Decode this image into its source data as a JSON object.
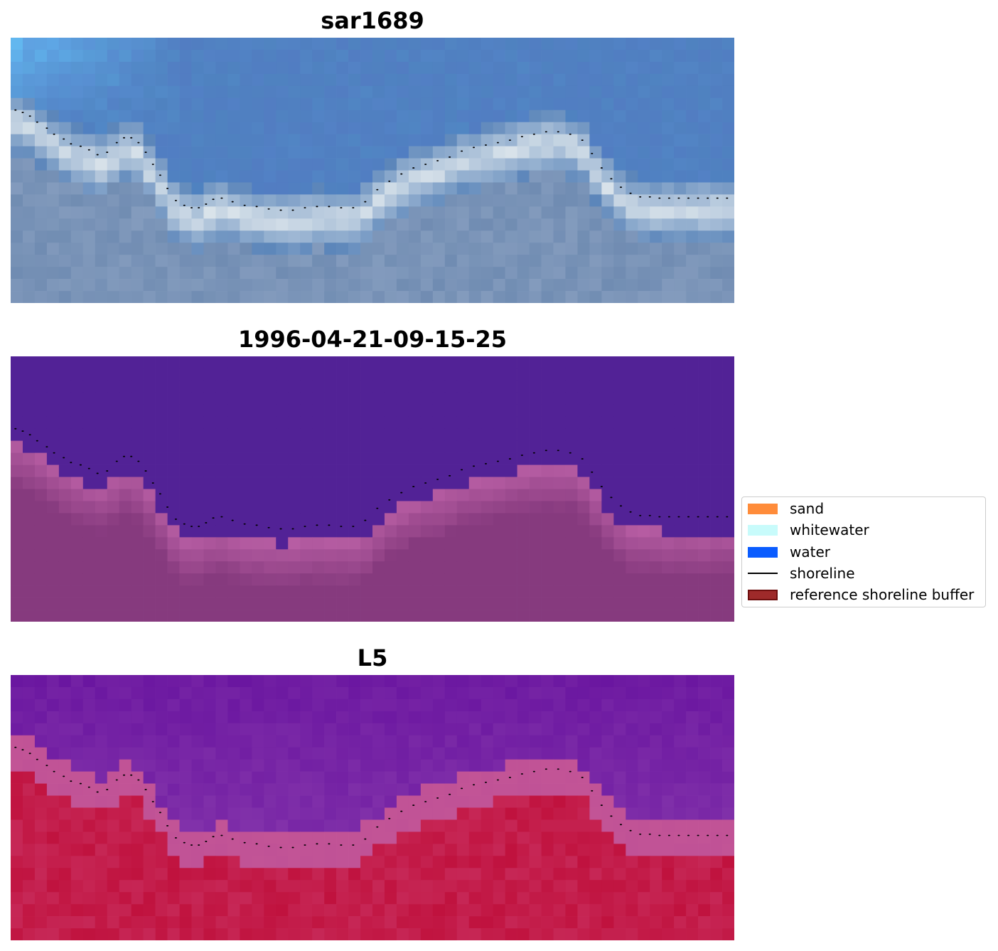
{
  "chart_data": [
    {
      "type": "heatmap",
      "title": "sar1689",
      "colormap": "rgb-composite",
      "grid": false,
      "axes": "off"
    },
    {
      "type": "heatmap",
      "title": "1996-04-21-09-15-25",
      "colormap": "classified-overlay",
      "grid": false,
      "axes": "off"
    },
    {
      "type": "heatmap",
      "title": "L5",
      "colormap": "plasma-like",
      "grid": false,
      "axes": "off"
    }
  ],
  "shoreline": {
    "style": "dotted",
    "color": "#000000",
    "x": [
      0.4,
      1.0,
      1.6,
      2.2,
      3.0,
      3.6,
      4.4,
      5.0,
      5.8,
      6.5,
      7.2,
      8.0,
      8.8,
      9.4,
      10.0,
      10.6,
      11.2,
      11.8,
      12.4,
      13.0,
      13.7,
      14.4,
      15.0,
      15.6,
      16.2,
      16.8,
      17.5,
      18.4,
      19.4,
      20.4,
      21.4,
      22.4,
      23.4,
      24.4,
      25.4,
      26.4,
      27.4,
      28.4,
      29.4,
      30.4,
      31.4,
      32.4,
      33.4,
      34.4,
      35.4,
      36.4,
      37.4,
      38.4,
      39.4,
      40.4,
      41.4,
      42.4,
      43.4,
      44.4,
      45.4,
      46.4,
      47.4,
      48.2,
      49.0,
      49.8,
      50.6,
      51.4,
      52.2,
      53.0,
      53.8,
      54.6,
      55.4,
      56.2,
      57.0,
      57.8,
      58.6,
      59.4,
      60.2
    ],
    "y": [
      6.0,
      6.2,
      6.5,
      7.0,
      7.5,
      8.0,
      8.4,
      8.8,
      9.0,
      9.3,
      9.7,
      9.5,
      8.7,
      8.3,
      8.3,
      8.7,
      9.5,
      10.5,
      11.4,
      12.5,
      13.5,
      13.9,
      14.1,
      14.1,
      13.8,
      13.4,
      13.3,
      13.6,
      13.9,
      14.0,
      14.2,
      14.3,
      14.3,
      14.1,
      14.0,
      14.0,
      14.1,
      14.1,
      13.6,
      12.6,
      11.9,
      11.3,
      10.8,
      10.5,
      10.2,
      9.9,
      9.4,
      9.1,
      8.9,
      8.7,
      8.5,
      8.2,
      8.0,
      7.8,
      7.8,
      8.0,
      8.5,
      9.6,
      10.8,
      11.7,
      12.4,
      12.9,
      13.2,
      13.2,
      13.3,
      13.3,
      13.3,
      13.3,
      13.3,
      13.3,
      13.3,
      13.3,
      13.3
    ],
    "grid_size": [
      60,
      22
    ]
  },
  "legend": {
    "placement": "center-right",
    "items": [
      {
        "label": "sand",
        "kind": "patch",
        "color": "#ff8c3a",
        "edge": "none"
      },
      {
        "label": "whitewater",
        "kind": "patch",
        "color": "#c8fbfb",
        "edge": "none"
      },
      {
        "label": "water",
        "kind": "patch",
        "color": "#0a5cff",
        "edge": "none"
      },
      {
        "label": "shoreline",
        "kind": "line",
        "color": "#000000"
      },
      {
        "label": "reference shoreline buffer",
        "kind": "patch",
        "color": "#9e2a2a",
        "edge": "#6e0f0f"
      }
    ]
  },
  "colors": {
    "sar_water": "#4f82c0",
    "sar_surf": "#e8eef0",
    "classified_water": "#522296",
    "classified_land": "#863a7e",
    "classified_edge": "#b85ea4",
    "l5_water": "#6a16a0",
    "l5_land": "#c0123e"
  }
}
